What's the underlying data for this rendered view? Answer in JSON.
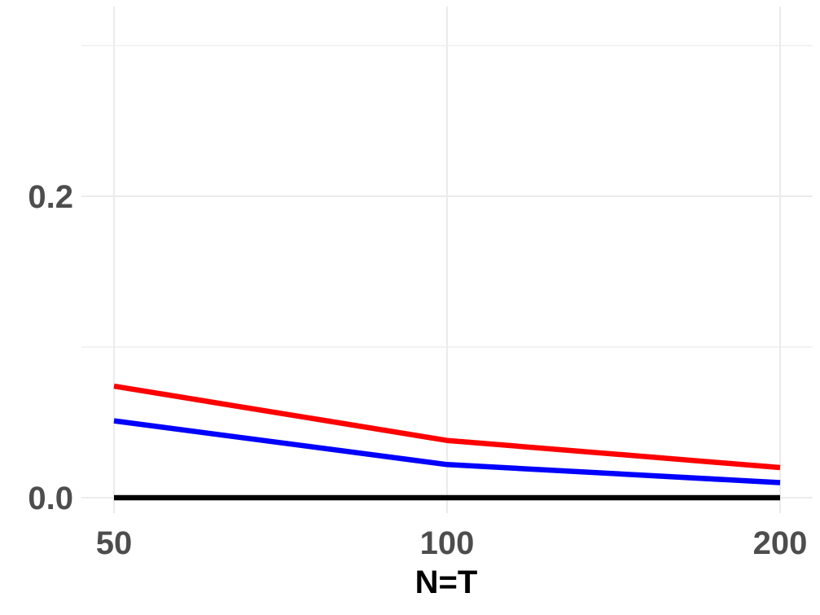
{
  "chart_data": {
    "type": "line",
    "title": "",
    "xlabel": "N=T",
    "ylabel": "",
    "x": [
      50,
      100,
      200
    ],
    "x_tick_labels": [
      "50",
      "100",
      "200"
    ],
    "y_ticks": [
      0.0,
      0.2
    ],
    "y_tick_labels": [
      "0.0",
      "0.2"
    ],
    "ylim": [
      -0.012,
      0.32
    ],
    "grid": true,
    "series": [
      {
        "color": "#ff0000",
        "values": [
          0.074,
          0.038,
          0.02
        ]
      },
      {
        "color": "#0000ff",
        "values": [
          0.051,
          0.022,
          0.01
        ]
      },
      {
        "color": "#000000",
        "values": [
          0.0,
          0.0,
          0.0
        ]
      }
    ]
  },
  "colors": {
    "grid": "#ebebeb",
    "tick_text": "#4d4d4d",
    "axis_title": "#000000"
  }
}
